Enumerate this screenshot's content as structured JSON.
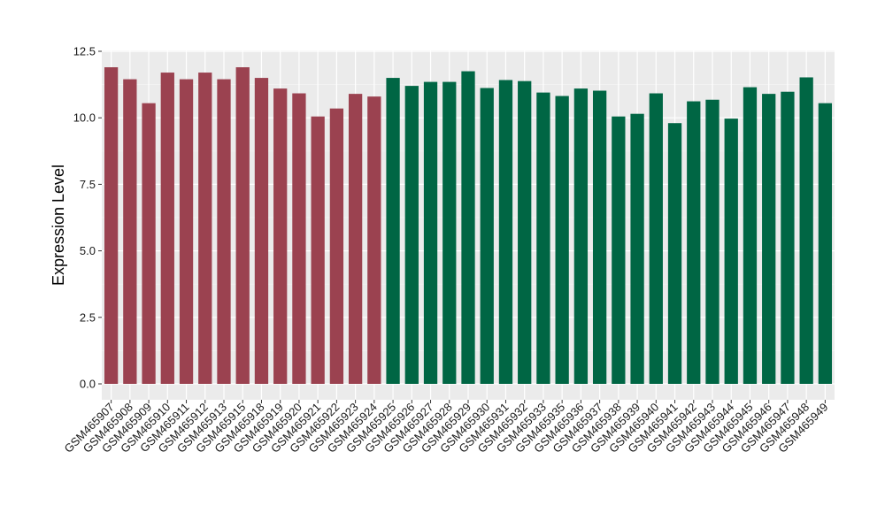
{
  "chart_data": {
    "type": "bar",
    "ylabel": "Expression Level",
    "xlabel": "",
    "ylim": [
      0,
      12.5
    ],
    "yticks": [
      0.0,
      2.5,
      5.0,
      7.5,
      10.0,
      12.5
    ],
    "grid": true,
    "colors": {
      "group1": "#9b4250",
      "group2": "#006644"
    },
    "categories": [
      "GSM465907",
      "GSM465908",
      "GSM465909",
      "GSM465910",
      "GSM465911",
      "GSM465912",
      "GSM465913",
      "GSM465915",
      "GSM465918",
      "GSM465919",
      "GSM465920",
      "GSM465921",
      "GSM465922",
      "GSM465923",
      "GSM465924",
      "GSM465925",
      "GSM465926",
      "GSM465927",
      "GSM465928",
      "GSM465929",
      "GSM465930",
      "GSM465931",
      "GSM465932",
      "GSM465933",
      "GSM465935",
      "GSM465936",
      "GSM465937",
      "GSM465938",
      "GSM465939",
      "GSM465940",
      "GSM465941",
      "GSM465942",
      "GSM465943",
      "GSM465944",
      "GSM465945",
      "GSM465946",
      "GSM465947",
      "GSM465948",
      "GSM465949"
    ],
    "values": [
      11.9,
      11.45,
      10.55,
      11.7,
      11.45,
      11.7,
      11.45,
      11.9,
      11.5,
      11.1,
      10.92,
      10.05,
      10.35,
      10.9,
      10.8,
      11.5,
      11.2,
      11.35,
      11.35,
      11.75,
      11.12,
      11.42,
      11.38,
      10.95,
      10.82,
      11.1,
      11.02,
      10.05,
      10.15,
      10.92,
      9.8,
      10.62,
      10.68,
      9.97,
      11.15,
      10.9,
      10.98,
      11.52,
      10.55
    ],
    "groups": [
      1,
      1,
      1,
      1,
      1,
      1,
      1,
      1,
      1,
      1,
      1,
      1,
      1,
      1,
      1,
      2,
      2,
      2,
      2,
      2,
      2,
      2,
      2,
      2,
      2,
      2,
      2,
      2,
      2,
      2,
      2,
      2,
      2,
      2,
      2,
      2,
      2,
      2,
      2
    ]
  }
}
